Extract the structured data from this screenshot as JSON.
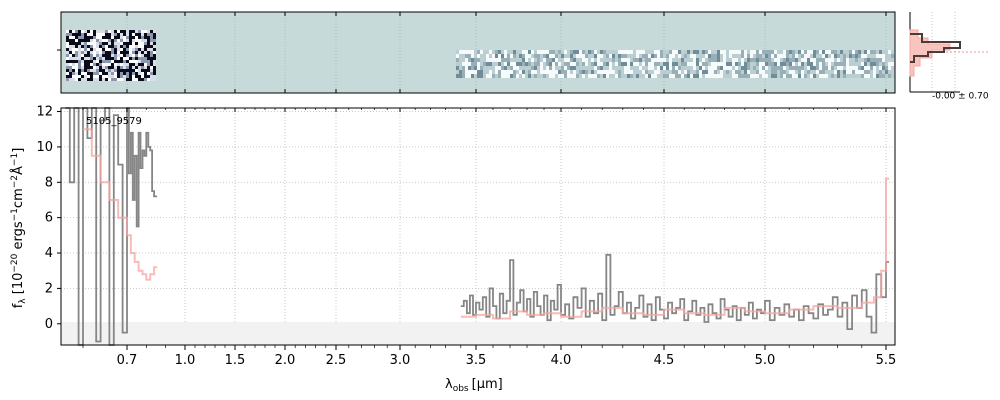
{
  "chart_data": {
    "type": "line",
    "object_id": "5105_9579",
    "xlabel_main": "λ",
    "xlabel_sub": "obs",
    "xlabel_unit": "[μm]",
    "ylabel": "f_λ [10^-20 ergs^-1 cm^-2 Å^-1]",
    "ylabel_parts": {
      "f": "f",
      "lambda": "λ",
      "rest": " [10",
      "exp1": "−20",
      "ergs": " ergs",
      "exp2": "−1",
      "cm": "cm",
      "exp3": "−2",
      "ang": "Å",
      "exp4": "−1",
      "close": "]"
    },
    "ylim": [
      -1.2,
      12.2
    ],
    "y_ticks": [
      0,
      2,
      4,
      6,
      8,
      10,
      12
    ],
    "x_ticks": [
      {
        "pos": 0.7,
        "label": "0.7"
      },
      {
        "pos": 1.0,
        "label": "1.0"
      },
      {
        "pos": 1.5,
        "label": "1.5"
      },
      {
        "pos": 2.0,
        "label": "2.0"
      },
      {
        "pos": 2.5,
        "label": "2.5"
      },
      {
        "pos": 3.0,
        "label": "3.0"
      },
      {
        "pos": 3.5,
        "label": "3.5"
      },
      {
        "pos": 4.0,
        "label": "4.0"
      },
      {
        "pos": 4.5,
        "label": "4.5"
      },
      {
        "pos": 5.0,
        "label": "5.0"
      },
      {
        "pos": 5.5,
        "label": "5.5"
      }
    ],
    "histogram_label": "-0.00 ± 0.70",
    "grid": true,
    "series": [
      {
        "color": "#808080",
        "x": [
          0.56,
          0.57,
          0.58,
          0.59,
          0.6,
          0.61,
          0.62,
          0.63,
          0.64,
          0.65,
          0.66,
          0.67,
          0.68,
          0.69,
          0.7,
          0.71,
          0.72,
          0.73,
          0.74,
          0.75,
          0.76,
          0.77,
          0.78,
          0.79,
          0.8,
          0.81,
          0.82,
          0.83,
          0.84
        ],
        "values": [
          12.2,
          8.0,
          12.2,
          -1.2,
          12.2,
          10.5,
          12.2,
          -1.0,
          11.5,
          12.2,
          -1.2,
          11.8,
          9.0,
          -0.5,
          12.2,
          8.5,
          10.8,
          7.0,
          9.5,
          5.5,
          10.8,
          8.8,
          9.8,
          9.5,
          10.8,
          10.0,
          9.8,
          7.5,
          7.2
        ]
      },
      {
        "color": "#f4a6a0",
        "x": [
          0.6,
          0.62,
          0.64,
          0.66,
          0.68,
          0.7,
          0.72,
          0.74,
          0.76,
          0.78,
          0.8,
          0.82,
          0.84
        ],
        "values": [
          11.0,
          9.5,
          8.0,
          7.0,
          6.0,
          5.0,
          4.0,
          3.5,
          3.0,
          2.8,
          2.5,
          2.8,
          3.2
        ]
      },
      {
        "color": "#808080",
        "x": [
          3.4,
          3.42,
          3.44,
          3.46,
          3.48,
          3.5,
          3.52,
          3.54,
          3.56,
          3.58,
          3.6,
          3.62,
          3.64,
          3.66,
          3.68,
          3.7,
          3.72,
          3.74,
          3.76,
          3.78,
          3.8,
          3.82,
          3.84,
          3.86,
          3.88,
          3.9,
          3.92,
          3.94,
          3.96,
          3.98,
          4.0,
          4.02,
          4.04,
          4.06,
          4.08,
          4.1,
          4.12,
          4.14,
          4.16,
          4.18,
          4.2,
          4.22,
          4.24,
          4.26,
          4.28,
          4.3,
          4.32,
          4.34,
          4.36,
          4.38,
          4.4,
          4.42,
          4.44,
          4.46,
          4.48,
          4.5,
          4.52,
          4.54,
          4.56,
          4.58,
          4.6,
          4.62,
          4.64,
          4.66,
          4.68,
          4.7,
          4.72,
          4.74,
          4.76,
          4.78,
          4.8,
          4.82,
          4.84,
          4.86,
          4.88,
          4.9,
          4.92,
          4.94,
          4.96,
          4.98,
          5.0,
          5.02,
          5.04,
          5.06,
          5.08,
          5.1,
          5.12,
          5.14,
          5.16,
          5.18,
          5.2,
          5.22,
          5.24,
          5.26,
          5.28,
          5.3,
          5.32,
          5.34,
          5.36,
          5.38,
          5.4,
          5.42,
          5.44,
          5.46,
          5.48,
          5.5
        ],
        "values": [
          1.0,
          1.3,
          0.6,
          1.6,
          0.5,
          1.2,
          0.8,
          1.5,
          0.4,
          2.0,
          1.0,
          0.3,
          1.7,
          0.6,
          1.3,
          3.6,
          0.5,
          1.2,
          1.9,
          0.7,
          1.4,
          0.4,
          1.8,
          1.0,
          0.5,
          1.6,
          0.2,
          1.3,
          0.8,
          2.2,
          0.5,
          1.1,
          0.3,
          1.5,
          0.9,
          2.0,
          0.4,
          1.3,
          0.6,
          1.7,
          0.2,
          3.9,
          0.5,
          1.0,
          1.8,
          0.6,
          1.2,
          0.3,
          0.9,
          1.6,
          0.4,
          1.1,
          0.2,
          1.5,
          0.8,
          0.3,
          1.2,
          0.6,
          0.9,
          1.4,
          0.2,
          0.7,
          1.3,
          0.5,
          0.9,
          0.1,
          1.1,
          0.6,
          0.3,
          1.4,
          0.8,
          0.4,
          1.0,
          0.2,
          0.9,
          0.5,
          1.2,
          0.3,
          0.8,
          0.6,
          1.3,
          0.2,
          0.9,
          0.5,
          1.1,
          0.4,
          0.8,
          0.2,
          1.0,
          0.6,
          0.3,
          1.1,
          0.5,
          0.8,
          1.5,
          0.4,
          1.2,
          -0.3,
          1.6,
          0.9,
          1.9,
          0.4,
          -0.5,
          2.8,
          1.5,
          3.5
        ]
      },
      {
        "color": "#f4a6a0",
        "x": [
          3.4,
          3.5,
          3.6,
          3.7,
          3.8,
          3.9,
          4.0,
          4.1,
          4.2,
          4.3,
          4.4,
          4.5,
          4.6,
          4.7,
          4.8,
          4.9,
          5.0,
          5.1,
          5.2,
          5.3,
          5.4,
          5.45,
          5.48,
          5.5
        ],
        "values": [
          0.4,
          0.5,
          0.3,
          0.7,
          0.5,
          0.6,
          0.4,
          0.7,
          0.9,
          0.6,
          0.5,
          0.8,
          0.6,
          0.5,
          0.9,
          0.7,
          0.6,
          0.8,
          1.0,
          0.9,
          1.2,
          1.5,
          3.0,
          8.2
        ]
      }
    ]
  }
}
